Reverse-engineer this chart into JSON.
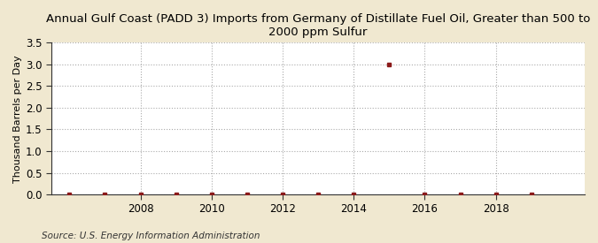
{
  "title": "Annual Gulf Coast (PADD 3) Imports from Germany of Distillate Fuel Oil, Greater than 500 to\n2000 ppm Sulfur",
  "ylabel": "Thousand Barrels per Day",
  "source": "Source: U.S. Energy Information Administration",
  "background_color": "#f0e8d0",
  "plot_background_color": "#ffffff",
  "data_points": [
    {
      "year": 2006,
      "value": 0.0
    },
    {
      "year": 2007,
      "value": 0.0
    },
    {
      "year": 2008,
      "value": 0.0
    },
    {
      "year": 2009,
      "value": 0.0
    },
    {
      "year": 2010,
      "value": 0.0
    },
    {
      "year": 2011,
      "value": 0.0
    },
    {
      "year": 2012,
      "value": 0.0
    },
    {
      "year": 2013,
      "value": 0.0
    },
    {
      "year": 2014,
      "value": 0.0
    },
    {
      "year": 2015,
      "value": 3.0
    },
    {
      "year": 2016,
      "value": 0.0
    },
    {
      "year": 2017,
      "value": 0.0
    },
    {
      "year": 2018,
      "value": 0.0
    },
    {
      "year": 2019,
      "value": 0.0
    }
  ],
  "marker_color": "#8b1a1a",
  "marker_size": 3,
  "ylim": [
    0.0,
    3.5
  ],
  "yticks": [
    0.0,
    0.5,
    1.0,
    1.5,
    2.0,
    2.5,
    3.0,
    3.5
  ],
  "xlim": [
    2005.5,
    2020.5
  ],
  "xticks": [
    2008,
    2010,
    2012,
    2014,
    2016,
    2018
  ],
  "grid_color": "#aaaaaa",
  "grid_style": ":",
  "title_fontsize": 9.5,
  "axis_fontsize": 8,
  "tick_fontsize": 8.5,
  "source_fontsize": 7.5
}
